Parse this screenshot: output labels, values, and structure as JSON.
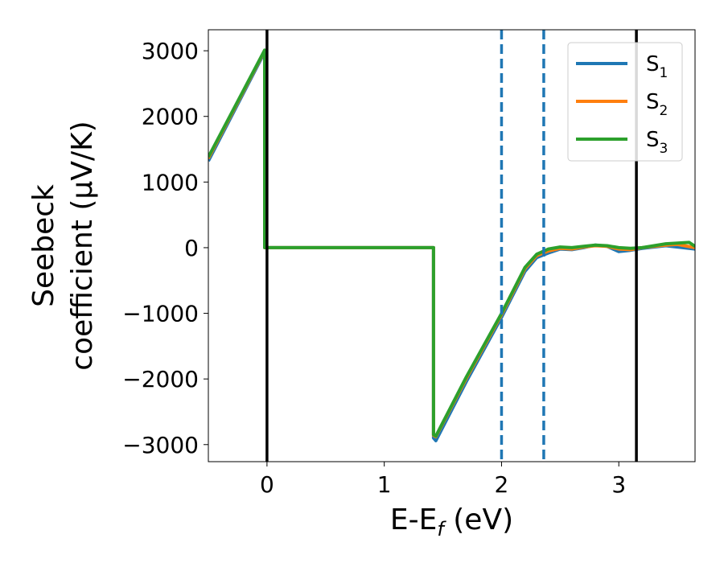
{
  "chart_data": {
    "type": "line",
    "xlabel": {
      "main": "E-E",
      "sub": "f",
      "rest": " (eV)"
    },
    "ylabel_line1": "Seebeck",
    "ylabel_line2": "coefficient  (μV/K)",
    "xlim": [
      -0.5,
      3.65
    ],
    "ylim": [
      -3260,
      3320
    ],
    "xticks": [
      0,
      1,
      2,
      3
    ],
    "xtick_labels": [
      "0",
      "1",
      "2",
      "3"
    ],
    "yticks": [
      3000,
      2000,
      1000,
      0,
      -1000,
      -2000,
      -3000
    ],
    "ytick_labels": [
      "3000",
      "2000",
      "1000",
      "0",
      "−1000",
      "−2000",
      "−3000"
    ],
    "grid": false,
    "legend_position": "top-right",
    "vlines": [
      {
        "x": 0.0,
        "color": "#000000",
        "style": "solid"
      },
      {
        "x": 3.15,
        "color": "#000000",
        "style": "solid"
      },
      {
        "x": 2.0,
        "color": "#1f77b4",
        "style": "dashed"
      },
      {
        "x": 2.36,
        "color": "#1f77b4",
        "style": "dashed"
      }
    ],
    "series": [
      {
        "name": "S",
        "subscript": "1",
        "color": "#1f77b4",
        "x": [
          -0.5,
          -0.02,
          -0.02,
          0.0,
          1.42,
          1.42,
          1.44,
          1.7,
          2.0,
          2.2,
          2.3,
          2.4,
          2.5,
          2.6,
          2.7,
          2.8,
          2.9,
          3.0,
          3.1,
          3.2,
          3.3,
          3.4,
          3.5,
          3.65
        ],
        "y": [
          1320,
          2980,
          0,
          0,
          0,
          -2900,
          -2940,
          -2040,
          -1060,
          -360,
          -150,
          -80,
          -20,
          -30,
          0,
          40,
          20,
          -60,
          -40,
          -10,
          10,
          30,
          10,
          -20
        ]
      },
      {
        "name": "S",
        "subscript": "2",
        "color": "#ff7f0e",
        "x": [
          -0.5,
          -0.02,
          -0.02,
          0.0,
          1.42,
          1.42,
          1.44,
          1.7,
          2.0,
          2.2,
          2.3,
          2.4,
          2.5,
          2.6,
          2.7,
          2.8,
          2.9,
          3.0,
          3.1,
          3.2,
          3.3,
          3.4,
          3.5,
          3.65
        ],
        "y": [
          1360,
          3000,
          0,
          0,
          0,
          -2860,
          -2880,
          -1990,
          -1020,
          -320,
          -120,
          -50,
          -10,
          -20,
          10,
          30,
          20,
          -20,
          -30,
          0,
          20,
          40,
          50,
          0
        ]
      },
      {
        "name": "S",
        "subscript": "3",
        "color": "#2ca02c",
        "x": [
          -0.5,
          -0.02,
          -0.02,
          0.0,
          1.42,
          1.42,
          1.44,
          1.7,
          2.0,
          2.2,
          2.3,
          2.4,
          2.5,
          2.6,
          2.7,
          2.8,
          2.9,
          3.0,
          3.1,
          3.2,
          3.3,
          3.4,
          3.5,
          3.6,
          3.65
        ],
        "y": [
          1380,
          3010,
          0,
          0,
          0,
          -2850,
          -2870,
          -1970,
          -1000,
          -300,
          -100,
          -20,
          10,
          0,
          20,
          40,
          30,
          0,
          -10,
          0,
          30,
          60,
          70,
          80,
          20
        ]
      }
    ]
  }
}
